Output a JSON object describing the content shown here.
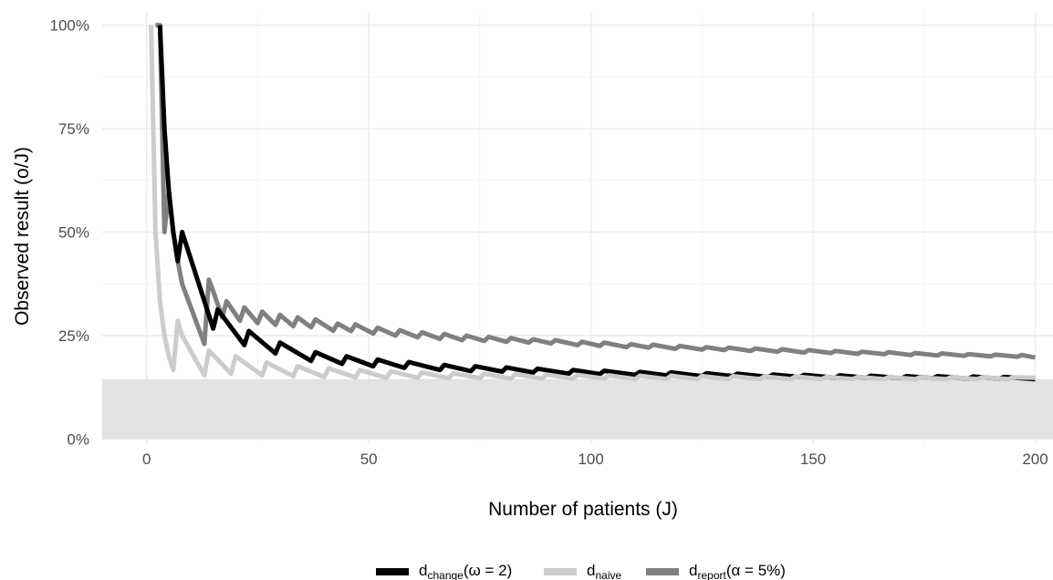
{
  "chart_data": {
    "type": "line",
    "title": "",
    "xlabel": "Number of patients (J)",
    "ylabel": "Observed result (o/J)",
    "xlim": [
      -10,
      204
    ],
    "ylim": [
      -0.01,
      1.03
    ],
    "x_ticks": [
      0,
      50,
      100,
      150,
      200
    ],
    "x_tick_labels": [
      "0",
      "50",
      "100",
      "150",
      "200"
    ],
    "y_ticks": [
      0,
      0.25,
      0.5,
      0.75,
      1.0
    ],
    "y_tick_labels": [
      "0%",
      "25%",
      "50%",
      "75%",
      "100%"
    ],
    "grid": true,
    "shaded_band": {
      "y_from": 0,
      "y_to": 0.145,
      "color": "#e3e3e3"
    },
    "legend_position": "bottom",
    "series": [
      {
        "key": "report",
        "color": "#808080",
        "legend": {
          "base": "d",
          "sub": "report",
          "suffix": "(α = 5%)"
        },
        "points": [
          [
            2,
            1.0
          ],
          [
            3,
            1.0
          ],
          [
            4,
            0.5
          ],
          [
            5,
            0.6
          ],
          [
            6,
            0.5
          ],
          [
            7,
            0.43
          ],
          [
            8,
            0.375
          ],
          [
            13,
            0.23
          ],
          [
            14,
            0.385
          ],
          [
            15,
            0.357
          ],
          [
            17,
            0.294
          ],
          [
            18,
            0.333
          ],
          [
            21,
            0.286
          ],
          [
            22,
            0.318
          ],
          [
            25,
            0.28
          ],
          [
            26,
            0.308
          ],
          [
            29,
            0.276
          ],
          [
            30,
            0.3
          ],
          [
            33,
            0.273
          ],
          [
            34,
            0.294
          ],
          [
            37,
            0.27
          ],
          [
            38,
            0.289
          ],
          [
            42,
            0.262
          ],
          [
            43,
            0.279
          ],
          [
            46,
            0.261
          ],
          [
            47,
            0.277
          ],
          [
            51,
            0.255
          ],
          [
            52,
            0.269
          ],
          [
            56,
            0.25
          ],
          [
            57,
            0.263
          ],
          [
            61,
            0.246
          ],
          [
            62,
            0.258
          ],
          [
            66,
            0.242
          ],
          [
            67,
            0.254
          ],
          [
            71,
            0.239
          ],
          [
            72,
            0.25
          ],
          [
            76,
            0.237
          ],
          [
            77,
            0.247
          ],
          [
            81,
            0.235
          ],
          [
            82,
            0.244
          ],
          [
            86,
            0.233
          ],
          [
            87,
            0.241
          ],
          [
            91,
            0.231
          ],
          [
            92,
            0.239
          ],
          [
            97,
            0.227
          ],
          [
            98,
            0.235
          ],
          [
            102,
            0.225
          ],
          [
            103,
            0.233
          ],
          [
            108,
            0.222
          ],
          [
            109,
            0.229
          ],
          [
            113,
            0.221
          ],
          [
            114,
            0.228
          ],
          [
            119,
            0.218
          ],
          [
            120,
            0.225
          ],
          [
            125,
            0.216
          ],
          [
            126,
            0.222
          ],
          [
            130,
            0.215
          ],
          [
            131,
            0.221
          ],
          [
            136,
            0.213
          ],
          [
            137,
            0.219
          ],
          [
            142,
            0.211
          ],
          [
            143,
            0.217
          ],
          [
            148,
            0.209
          ],
          [
            149,
            0.215
          ],
          [
            154,
            0.208
          ],
          [
            155,
            0.213
          ],
          [
            160,
            0.206
          ],
          [
            161,
            0.211
          ],
          [
            166,
            0.205
          ],
          [
            167,
            0.21
          ],
          [
            172,
            0.203
          ],
          [
            173,
            0.208
          ],
          [
            178,
            0.202
          ],
          [
            179,
            0.207
          ],
          [
            184,
            0.201
          ],
          [
            185,
            0.205
          ],
          [
            190,
            0.2
          ],
          [
            191,
            0.204
          ],
          [
            196,
            0.199
          ],
          [
            197,
            0.203
          ],
          [
            200,
            0.197
          ]
        ]
      },
      {
        "key": "change",
        "color": "#000000",
        "legend": {
          "base": "d",
          "sub": "change",
          "suffix": "(ω = 2)"
        },
        "points": [
          [
            3,
            1.0
          ],
          [
            4,
            0.75
          ],
          [
            5,
            0.6
          ],
          [
            6,
            0.5
          ],
          [
            7,
            0.43
          ],
          [
            8,
            0.5
          ],
          [
            15,
            0.267
          ],
          [
            16,
            0.313
          ],
          [
            22,
            0.227
          ],
          [
            23,
            0.261
          ],
          [
            29,
            0.207
          ],
          [
            30,
            0.233
          ],
          [
            37,
            0.189
          ],
          [
            38,
            0.21
          ],
          [
            44,
            0.182
          ],
          [
            45,
            0.2
          ],
          [
            51,
            0.176
          ],
          [
            52,
            0.192
          ],
          [
            58,
            0.172
          ],
          [
            59,
            0.186
          ],
          [
            66,
            0.167
          ],
          [
            67,
            0.179
          ],
          [
            73,
            0.164
          ],
          [
            74,
            0.176
          ],
          [
            80,
            0.163
          ],
          [
            81,
            0.173
          ],
          [
            87,
            0.161
          ],
          [
            88,
            0.17
          ],
          [
            95,
            0.158
          ],
          [
            96,
            0.167
          ],
          [
            102,
            0.157
          ],
          [
            103,
            0.165
          ],
          [
            110,
            0.155
          ],
          [
            111,
            0.162
          ],
          [
            117,
            0.154
          ],
          [
            118,
            0.161
          ],
          [
            125,
            0.152
          ],
          [
            126,
            0.159
          ],
          [
            132,
            0.152
          ],
          [
            133,
            0.158
          ],
          [
            140,
            0.15
          ],
          [
            141,
            0.156
          ],
          [
            147,
            0.15
          ],
          [
            148,
            0.155
          ],
          [
            155,
            0.148
          ],
          [
            156,
            0.154
          ],
          [
            162,
            0.148
          ],
          [
            163,
            0.153
          ],
          [
            170,
            0.147
          ],
          [
            171,
            0.152
          ],
          [
            177,
            0.147
          ],
          [
            178,
            0.152
          ],
          [
            185,
            0.146
          ],
          [
            186,
            0.151
          ],
          [
            192,
            0.146
          ],
          [
            193,
            0.15
          ],
          [
            200,
            0.145
          ]
        ]
      },
      {
        "key": "naive",
        "color": "#cccccc",
        "legend": {
          "base": "d",
          "sub": "naive",
          "suffix": ""
        },
        "points": [
          [
            1,
            1.0
          ],
          [
            2,
            0.5
          ],
          [
            3,
            0.333
          ],
          [
            4,
            0.25
          ],
          [
            5,
            0.2
          ],
          [
            6,
            0.167
          ],
          [
            7,
            0.286
          ],
          [
            8,
            0.25
          ],
          [
            13,
            0.154
          ],
          [
            14,
            0.214
          ],
          [
            19,
            0.158
          ],
          [
            20,
            0.2
          ],
          [
            26,
            0.154
          ],
          [
            27,
            0.185
          ],
          [
            33,
            0.152
          ],
          [
            34,
            0.176
          ],
          [
            40,
            0.15
          ],
          [
            41,
            0.171
          ],
          [
            47,
            0.149
          ],
          [
            48,
            0.167
          ],
          [
            54,
            0.148
          ],
          [
            55,
            0.164
          ],
          [
            61,
            0.148
          ],
          [
            62,
            0.161
          ],
          [
            68,
            0.147
          ],
          [
            69,
            0.159
          ],
          [
            75,
            0.147
          ],
          [
            76,
            0.158
          ],
          [
            82,
            0.146
          ],
          [
            83,
            0.157
          ],
          [
            89,
            0.146
          ],
          [
            90,
            0.156
          ],
          [
            96,
            0.146
          ],
          [
            97,
            0.155
          ],
          [
            103,
            0.146
          ],
          [
            104,
            0.154
          ],
          [
            110,
            0.145
          ],
          [
            111,
            0.153
          ],
          [
            117,
            0.145
          ],
          [
            118,
            0.153
          ],
          [
            124,
            0.145
          ],
          [
            125,
            0.152
          ],
          [
            131,
            0.145
          ],
          [
            132,
            0.152
          ],
          [
            138,
            0.145
          ],
          [
            139,
            0.151
          ],
          [
            145,
            0.145
          ],
          [
            146,
            0.151
          ],
          [
            152,
            0.145
          ],
          [
            153,
            0.15
          ],
          [
            159,
            0.145
          ],
          [
            160,
            0.15
          ],
          [
            166,
            0.145
          ],
          [
            167,
            0.15
          ],
          [
            173,
            0.145
          ],
          [
            174,
            0.149
          ],
          [
            180,
            0.145
          ],
          [
            181,
            0.149
          ],
          [
            187,
            0.145
          ],
          [
            188,
            0.149
          ],
          [
            194,
            0.145
          ],
          [
            195,
            0.149
          ],
          [
            200,
            0.148
          ]
        ]
      }
    ],
    "legend_order": [
      "change",
      "naive",
      "report"
    ]
  }
}
